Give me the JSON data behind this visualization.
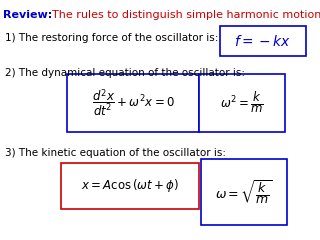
{
  "title_review": "Review:",
  "title_subtitle": "The rules to distinguish simple harmonic motion",
  "review_color": "#0000CC",
  "subtitle_color": "#CC0000",
  "text_color": "#000000",
  "bg_color": "#FFFFFF",
  "item1_text": "1) The restoring force of the oscillator is:",
  "item2_text": "2) The dynamical equation of the oscillator is:",
  "item3_text": "3) The kinetic equation of the oscillator is:",
  "formula1": "$f = -kx$",
  "formula2a": "$\\dfrac{d^2x}{dt^2} + \\omega^2 x = 0$",
  "formula2b": "$\\omega^2 = \\dfrac{k}{m}$",
  "formula3a": "$x = A\\cos\\left(\\omega t + \\phi\\right)$",
  "formula3b": "$\\omega = \\sqrt{\\dfrac{k}{m}}$",
  "box1_color": "#0000CC",
  "box2a_color": "#0000CC",
  "box2b_color": "#0000CC",
  "box3a_color": "#CC0000",
  "box3b_color": "#0000CC"
}
